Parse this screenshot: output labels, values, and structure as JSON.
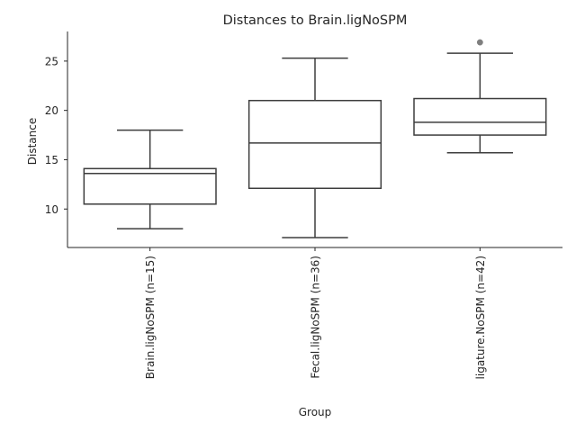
{
  "chart_data": {
    "type": "boxplot",
    "title": "Distances to Brain.ligNoSPM",
    "xlabel": "Group",
    "ylabel": "Distance",
    "ylim": [
      6.1,
      28.0
    ],
    "yticks": [
      10,
      15,
      20,
      25
    ],
    "grid": false,
    "legend": "none",
    "colors": {
      "box_stroke": "#3d3d3d",
      "flier": "#7f7f7f",
      "axis": "#262626",
      "text": "#262626"
    },
    "categories": [
      "Brain.ligNoSPM (n=15)",
      "Fecal.ligNoSPM (n=36)",
      "ligature.NoSPM (n=42)"
    ],
    "boxes": [
      {
        "whisker_low": 8.0,
        "q1": 10.5,
        "median": 13.6,
        "q3": 14.1,
        "whisker_high": 18.0,
        "fliers": []
      },
      {
        "whisker_low": 7.1,
        "q1": 12.1,
        "median": 16.7,
        "q3": 21.0,
        "whisker_high": 25.3,
        "fliers": []
      },
      {
        "whisker_low": 15.7,
        "q1": 17.5,
        "median": 18.8,
        "q3": 21.2,
        "whisker_high": 25.8,
        "fliers": [
          26.9
        ]
      }
    ]
  }
}
